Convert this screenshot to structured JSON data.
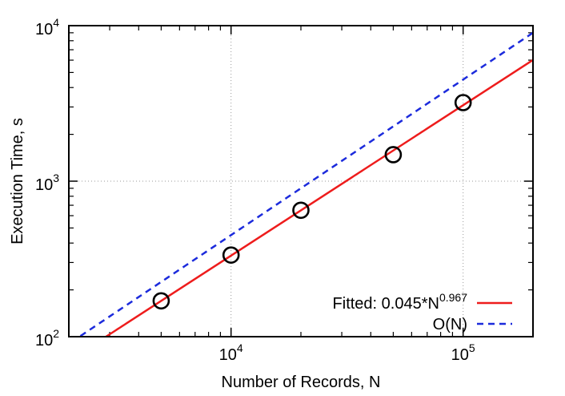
{
  "chart_data": {
    "type": "scatter",
    "title": "",
    "xlabel": "Number of Records, N",
    "ylabel": "Execution Time, s",
    "xscale": "log",
    "yscale": "log",
    "xlim": [
      2000,
      200000
    ],
    "ylim": [
      100,
      10000
    ],
    "grid": true,
    "legend_position": "bottom-right",
    "x_ticks": [
      {
        "value": 10000,
        "base": "10",
        "exp": "4"
      },
      {
        "value": 100000,
        "base": "10",
        "exp": "5"
      }
    ],
    "y_ticks": [
      {
        "value": 100,
        "base": "10",
        "exp": "2"
      },
      {
        "value": 1000,
        "base": "10",
        "exp": "3"
      },
      {
        "value": 10000,
        "base": "10",
        "exp": "4"
      }
    ],
    "measured": {
      "x": [
        5000,
        10000,
        20000,
        50000,
        100000
      ],
      "y": [
        170,
        335,
        650,
        1480,
        3200
      ],
      "marker": "open-circle",
      "color": "#000000"
    },
    "series": [
      {
        "name": "Fitted: 0.045*N",
        "name_sup": "0.967",
        "coef": 0.045,
        "exponent": 0.967,
        "color": "#ee1c1c",
        "style": "solid"
      },
      {
        "name": "O(N)",
        "coef": 0.045,
        "exponent": 1.0,
        "color": "#1c2bdc",
        "style": "dashed"
      }
    ]
  }
}
